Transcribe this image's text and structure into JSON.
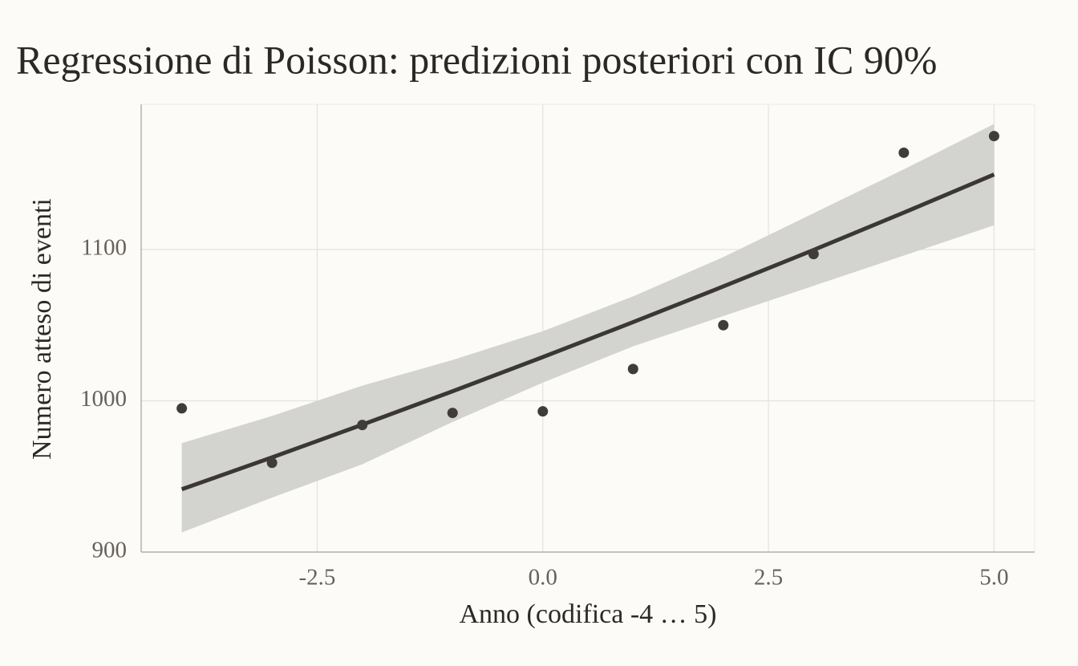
{
  "chart_data": {
    "type": "scatter",
    "title": "Regressione di Poisson: predizioni posteriori con IC 90%",
    "x_label": "Anno (codifica -4 … 5)",
    "y_label": "Numero atteso di eventi",
    "x": [
      -4,
      -3,
      -2,
      -1,
      0,
      1,
      2,
      3,
      4,
      5
    ],
    "points": {
      "color": "#3f3c39",
      "values": [
        995,
        959,
        984,
        992,
        993,
        1021,
        1050,
        1097,
        1164,
        1175
      ]
    },
    "fit": {
      "color": "#3a3735",
      "values": [
        941.5,
        962.6,
        984.2,
        1006.3,
        1028.9,
        1052.0,
        1075.6,
        1099.7,
        1124.4,
        1149.6
      ]
    },
    "band": {
      "color": "#d3d3cf",
      "lower": [
        913,
        936,
        958,
        986,
        1012,
        1036,
        1056,
        1076,
        1096,
        1116
      ],
      "upper": [
        972,
        990,
        1010,
        1027,
        1046,
        1069,
        1095,
        1124,
        1153,
        1183
      ]
    },
    "xlim": [
      -4.45,
      5.45
    ],
    "ylim": [
      900,
      1196
    ],
    "xticks": [
      -2.5,
      {
        "value": 0,
        "label": "0.0"
      },
      2.5,
      {
        "value": 5,
        "label": "5.0"
      }
    ],
    "yticks": [
      900,
      1000,
      1100
    ],
    "grid": true
  }
}
